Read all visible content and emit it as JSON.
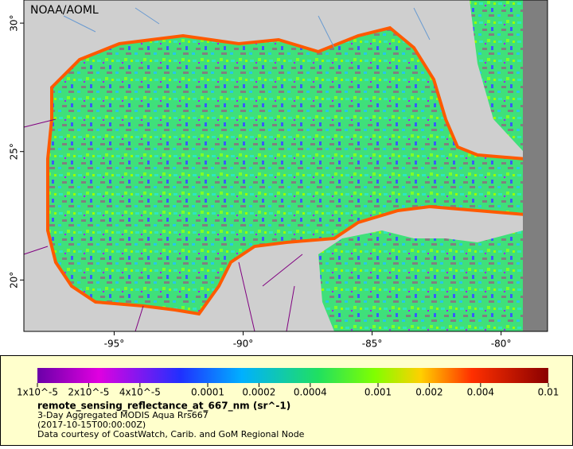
{
  "map": {
    "credit": "NOAA/AOML",
    "xlim": [
      -98.5,
      -78.2
    ],
    "ylim": [
      18,
      30.9
    ],
    "xticks": [
      {
        "value": -95,
        "label": "-95°"
      },
      {
        "value": -90,
        "label": "-90°"
      },
      {
        "value": -85,
        "label": "-85°"
      },
      {
        "value": -80,
        "label": "-80°"
      }
    ],
    "yticks": [
      {
        "value": 20,
        "label": "20°"
      },
      {
        "value": 25,
        "label": "25°"
      },
      {
        "value": 30,
        "label": "30°"
      }
    ]
  },
  "legend": {
    "scale": "log",
    "range": [
      1e-05,
      0.01
    ],
    "ticks": [
      {
        "value": 1e-05,
        "label": "1x10^-5"
      },
      {
        "value": 2e-05,
        "label": "2x10^-5"
      },
      {
        "value": 4e-05,
        "label": "4x10^-5"
      },
      0.0001,
      0.0002,
      0.0004,
      0.001,
      0.002,
      0.004,
      0.01
    ],
    "title": "remote_sensing_reflectance_at_667_nm (sr^-1)",
    "lines": [
      "3-Day Aggregated MODIS Aqua Rrs667",
      "(2017-10-15T00:00:00Z)",
      "Data courtesy of CoastWatch, Carib. and GoM Regional Node"
    ]
  }
}
